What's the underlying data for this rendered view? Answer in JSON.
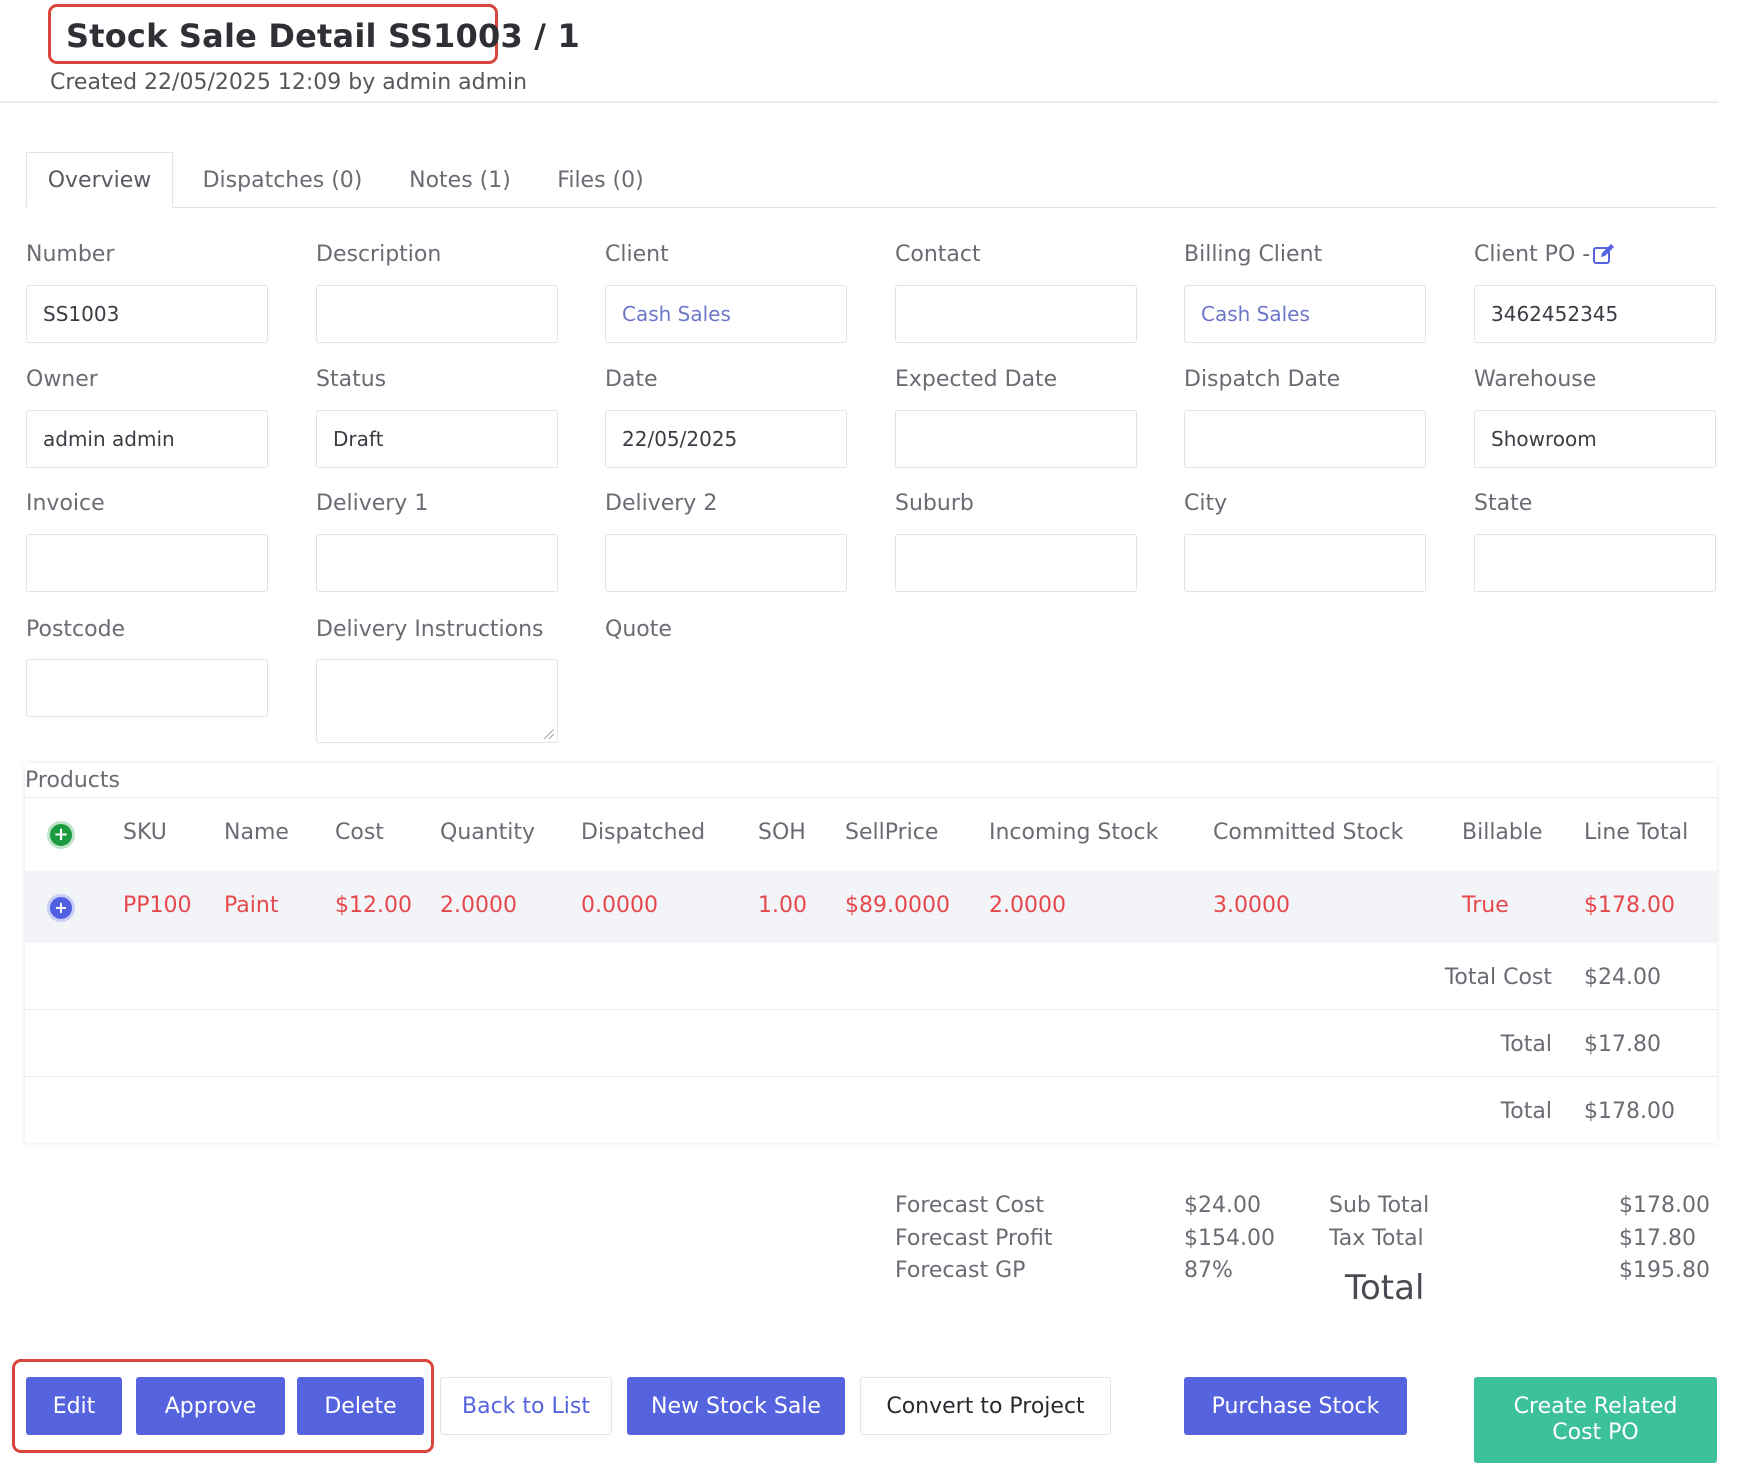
{
  "header": {
    "title": "Stock Sale Detail SS1003 / 1",
    "subtitle": "Created 22/05/2025 12:09 by admin admin"
  },
  "tabs": [
    {
      "label": "Overview",
      "active": true
    },
    {
      "label": "Dispatches (0)",
      "active": false
    },
    {
      "label": "Notes (1)",
      "active": false
    },
    {
      "label": "Files (0)",
      "active": false
    }
  ],
  "form": {
    "number": {
      "label": "Number",
      "value": "SS1003"
    },
    "description": {
      "label": "Description",
      "value": ""
    },
    "client": {
      "label": "Client",
      "value": "Cash Sales"
    },
    "contact": {
      "label": "Contact",
      "value": ""
    },
    "billing_client": {
      "label": "Billing Client",
      "value": "Cash Sales"
    },
    "client_po": {
      "label": "Client PO -",
      "value": "3462452345",
      "icon": "edit-icon"
    },
    "owner": {
      "label": "Owner",
      "value": "admin admin"
    },
    "status": {
      "label": "Status",
      "value": "Draft"
    },
    "date": {
      "label": "Date",
      "value": "22/05/2025"
    },
    "expected_date": {
      "label": "Expected Date",
      "value": ""
    },
    "dispatch_date": {
      "label": "Dispatch Date",
      "value": ""
    },
    "warehouse": {
      "label": "Warehouse",
      "value": "Showroom"
    },
    "invoice": {
      "label": "Invoice",
      "value": ""
    },
    "delivery1": {
      "label": "Delivery 1",
      "value": ""
    },
    "delivery2": {
      "label": "Delivery 2",
      "value": ""
    },
    "suburb": {
      "label": "Suburb",
      "value": ""
    },
    "city": {
      "label": "City",
      "value": ""
    },
    "state": {
      "label": "State",
      "value": ""
    },
    "postcode": {
      "label": "Postcode",
      "value": ""
    },
    "delivery_instructions": {
      "label": "Delivery Instructions",
      "value": ""
    },
    "quote": {
      "label": "Quote"
    }
  },
  "products": {
    "title": "Products",
    "add_icon": "plus-circle-icon",
    "columns": [
      "SKU",
      "Name",
      "Cost",
      "Quantity",
      "Dispatched",
      "SOH",
      "SellPrice",
      "Incoming Stock",
      "Committed Stock",
      "Billable",
      "Line Total"
    ],
    "rows": [
      {
        "icon": "plus-circle-icon",
        "cells": [
          "PP100",
          "Paint",
          "$12.00",
          "2.0000",
          "0.0000",
          "1.00",
          "$89.0000",
          "2.0000",
          "3.0000",
          "True",
          "$178.00"
        ]
      }
    ],
    "summary": [
      {
        "label": "Total Cost",
        "value": "$24.00"
      },
      {
        "label": "Total",
        "value": "$17.80"
      },
      {
        "label": "Total",
        "value": "$178.00"
      }
    ],
    "row_color": "#e5484d"
  },
  "forecast": {
    "cost_label": "Forecast Cost",
    "cost_value": "$24.00",
    "profit_label": "Forecast Profit",
    "profit_value": "$154.00",
    "gp_label": "Forecast GP",
    "gp_value": "87%",
    "subtotal_label": "Sub Total",
    "subtotal_value": "$178.00",
    "tax_label": "Tax Total",
    "tax_value": "$17.80",
    "total_label": "Total",
    "total_value": "$195.80"
  },
  "buttons": {
    "edit": "Edit",
    "approve": "Approve",
    "delete": "Delete",
    "back": "Back to List",
    "new_stock_sale": "New Stock Sale",
    "convert": "Convert to Project",
    "purchase": "Purchase Stock",
    "create_related_1": "Create Related",
    "create_related_2": "Cost PO"
  },
  "colors": {
    "primary": "#5563de",
    "accent_green": "#3cc19a",
    "highlight_red": "#d9453b",
    "link": "#6c77c8"
  }
}
